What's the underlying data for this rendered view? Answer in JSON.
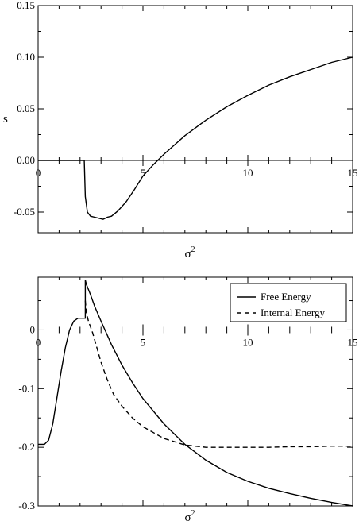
{
  "chart_data": [
    {
      "type": "line",
      "ylabel": "s",
      "xlabel": "σ",
      "xlabel_sup": "2",
      "xlim": [
        0,
        15
      ],
      "ylim": [
        -0.07,
        0.15
      ],
      "xticks": [
        "0",
        "5",
        "10",
        "15"
      ],
      "yticks": [
        "0.15",
        "0.10",
        "0.05",
        "0.00",
        "-0.05"
      ],
      "grid": false,
      "series": [
        {
          "x": [
            0,
            1,
            2,
            2.2,
            2.25,
            2.35,
            2.5,
            2.7,
            2.9,
            3.1,
            3.3,
            3.5,
            3.8,
            4.2,
            4.6,
            5.0,
            5.5,
            6.0,
            6.5,
            7.0,
            8.0,
            9.0,
            10.0,
            11.0,
            12.0,
            13.0,
            14.0,
            15.0
          ],
          "y": [
            0,
            0,
            0,
            0,
            -0.035,
            -0.05,
            -0.054,
            -0.055,
            -0.056,
            -0.057,
            -0.055,
            -0.054,
            -0.049,
            -0.04,
            -0.028,
            -0.015,
            -0.004,
            0.006,
            0.015,
            0.024,
            0.039,
            0.052,
            0.063,
            0.073,
            0.081,
            0.088,
            0.095,
            0.1
          ]
        }
      ]
    },
    {
      "type": "line",
      "ylabel": "",
      "xlabel": "σ",
      "xlabel_sup": "2",
      "xlim": [
        0,
        15
      ],
      "ylim": [
        -0.3,
        0.09
      ],
      "xticks": [
        "0",
        "5",
        "10",
        "15"
      ],
      "yticks": [
        "0",
        "-0.1",
        "-0.2",
        "-0.3"
      ],
      "grid": false,
      "legend_position": "top-right",
      "series": [
        {
          "name": "Free Energy",
          "style": "solid",
          "x": [
            0,
            0.3,
            0.5,
            0.7,
            0.9,
            1.1,
            1.3,
            1.5,
            1.7,
            1.9,
            2.1,
            2.2,
            2.25,
            2.25,
            2.3,
            2.5,
            2.7,
            3.0,
            3.5,
            4.0,
            4.5,
            5.0,
            6.0,
            7.0,
            8.0,
            9.0,
            10.0,
            11.0,
            12.0,
            13.0,
            14.0,
            15.0
          ],
          "y": [
            -0.195,
            -0.195,
            -0.188,
            -0.16,
            -0.115,
            -0.07,
            -0.03,
            0.0,
            0.015,
            0.02,
            0.02,
            0.02,
            0.02,
            0.085,
            0.078,
            0.06,
            0.04,
            0.015,
            -0.025,
            -0.06,
            -0.09,
            -0.117,
            -0.16,
            -0.195,
            -0.222,
            -0.243,
            -0.258,
            -0.27,
            -0.279,
            -0.287,
            -0.294,
            -0.3
          ]
        },
        {
          "name": "Internal Energy",
          "style": "dashed",
          "x": [
            2.25,
            2.3,
            2.4,
            2.6,
            2.8,
            3.0,
            3.3,
            3.6,
            4.0,
            4.5,
            5.0,
            6.0,
            7.0,
            8.0,
            9.0,
            10.0,
            11.0,
            12.0,
            13.0,
            14.0,
            15.0
          ],
          "y": [
            0.05,
            0.03,
            0.015,
            -0.005,
            -0.03,
            -0.055,
            -0.085,
            -0.11,
            -0.13,
            -0.15,
            -0.165,
            -0.185,
            -0.196,
            -0.2,
            -0.2,
            -0.2,
            -0.2,
            -0.199,
            -0.199,
            -0.198,
            -0.198
          ]
        }
      ]
    }
  ]
}
